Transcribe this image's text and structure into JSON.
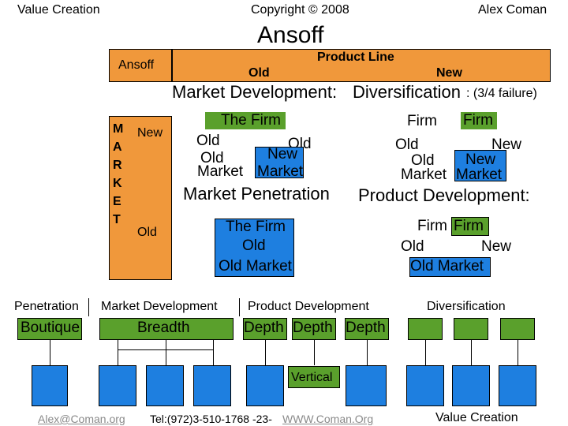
{
  "header": {
    "left": "Value Creation",
    "center": "Copyright © 2008",
    "right": "Alex Coman",
    "title": "Ansoff"
  },
  "matrix": {
    "corner_label": "Ansoff",
    "product_line_label": "Product Line",
    "col_old": "Old",
    "col_new": "New",
    "market_letters": [
      "M",
      "A",
      "R",
      "K",
      "E",
      "T"
    ],
    "row_new": "New",
    "row_old": "Old",
    "quadrants": {
      "market_development": {
        "title": "Market Development:",
        "firm": "The Firm",
        "old1": "Old",
        "old2": "Old",
        "new": "New",
        "old_market": "Market",
        "new_market": "Market"
      },
      "diversification": {
        "title": "Diversification",
        "note": ": (3/4 failure)",
        "firm_old": "Firm",
        "firm_new": "Firm",
        "old1": "Old",
        "old2": "Old",
        "new1": "New",
        "new2": "New",
        "old_market": "Market",
        "new_market": "Market"
      },
      "market_penetration": {
        "title": "Market Penetration",
        "firm": "The Firm",
        "old": "Old",
        "old_market": "Old Market"
      },
      "product_development": {
        "title": "Product Development:",
        "firm_old": "Firm",
        "firm_new": "Firm",
        "old": "Old",
        "new": "New",
        "old_market": "Old Market"
      }
    }
  },
  "strategies": {
    "penetration": {
      "heading": "Penetration",
      "label": "Boutique"
    },
    "market_development": {
      "heading": "Market Development",
      "label": "Breadth"
    },
    "product_development": {
      "heading": "Product Development",
      "labels": [
        "Depth",
        "Depth",
        "Depth"
      ]
    },
    "diversification": {
      "heading": "Diversification"
    },
    "vertical_label": "Vertical"
  },
  "footer": {
    "email": "Alex@Coman.org",
    "phone_page": "Tel:(972)3-510-1768  -23- ",
    "website": "WWW.Coman.Org",
    "right": "Value Creation"
  },
  "colors": {
    "orange": "#f0983b",
    "green": "#5aa02c",
    "blue": "#1e7fe0"
  }
}
